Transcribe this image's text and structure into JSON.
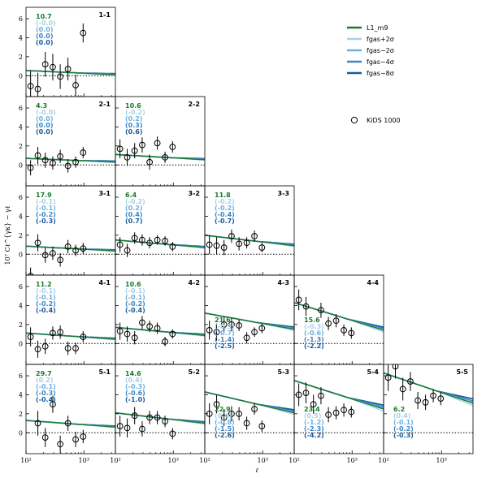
{
  "chart_data": {
    "type": "line",
    "xlabel": "ℓ",
    "ylabel": "10⁷ Cℓ^{γκ} − γℓ",
    "x_scale": "log",
    "xlim": [
      100,
      3500
    ],
    "ylim": [
      -2.2,
      7.2
    ],
    "x_ticks": [
      {
        "value": 100,
        "label": "10²"
      },
      {
        "value": 1000,
        "label": "10³"
      }
    ],
    "y_ticks": [
      {
        "value": 0,
        "label": "0"
      },
      {
        "value": 2,
        "label": "2"
      },
      {
        "value": 4,
        "label": "4"
      },
      {
        "value": 6,
        "label": "6"
      }
    ],
    "legend": {
      "position": "top-right",
      "entries": [
        {
          "label": "L1_m9",
          "color": "#1a7a2e",
          "kind": "line"
        },
        {
          "label": "fgas+2σ",
          "color": "#a8d0ea",
          "kind": "line"
        },
        {
          "label": "fgas−2σ",
          "color": "#6fb0dc",
          "kind": "line"
        },
        {
          "label": "fgas−4σ",
          "color": "#3a86c6",
          "kind": "line"
        },
        {
          "label": "fgas−8σ",
          "color": "#175c9e",
          "kind": "line"
        },
        {
          "label": "KiDS 1000",
          "kind": "marker"
        }
      ]
    },
    "series_colors": [
      "#1a7a2e",
      "#a8d0ea",
      "#6fb0dc",
      "#3a86c6",
      "#175c9e"
    ],
    "data_ell": [
      120,
      160,
      215,
      290,
      390,
      530,
      720,
      970,
      1310
    ],
    "panels": [
      {
        "label": "1-1",
        "row": 0,
        "col": 0,
        "stat_pos": "top",
        "stats": [
          "10.7",
          "(-0.0)",
          "(0.0)",
          "(0.0)",
          "(0.0)"
        ],
        "model_start": 0.55,
        "model_end": 0.1,
        "points": [
          -1.1,
          -1.4,
          1.2,
          0.9,
          -0.1,
          0.7,
          -1.0,
          4.5,
          null
        ],
        "errors": [
          1.6,
          1.7,
          1.3,
          1.4,
          1.3,
          1.2,
          1.1,
          1.0,
          null
        ]
      },
      {
        "label": "2-1",
        "row": 1,
        "col": 0,
        "stat_pos": "top",
        "stats": [
          "4.3",
          "(-0.0)",
          "(0.0)",
          "(0.0)",
          "(0.0)"
        ],
        "model_start": 0.7,
        "model_end": 0.3,
        "points": [
          -0.3,
          1.0,
          0.5,
          0.2,
          0.9,
          -0.1,
          0.3,
          1.3,
          null
        ],
        "errors": [
          0.8,
          0.9,
          0.8,
          0.7,
          0.7,
          0.7,
          0.6,
          0.6,
          null
        ]
      },
      {
        "label": "2-2",
        "row": 1,
        "col": 1,
        "stat_pos": "top",
        "stats": [
          "10.6",
          "(-0.2)",
          "(0.2)",
          "(0.3)",
          "(0.6)"
        ],
        "model_start": 1.1,
        "model_end": 0.55,
        "points": [
          1.7,
          0.8,
          1.5,
          2.1,
          0.3,
          2.3,
          0.8,
          1.9,
          null
        ],
        "errors": [
          1.0,
          0.9,
          0.8,
          0.8,
          0.8,
          0.7,
          0.6,
          0.6,
          null
        ]
      },
      {
        "label": "3-1",
        "row": 2,
        "col": 0,
        "stat_pos": "top",
        "stats": [
          "17.9",
          "(-0.1)",
          "(-0.1)",
          "(-0.2)",
          "(-0.3)"
        ],
        "model_start": 0.85,
        "model_end": 0.35,
        "points": [
          -2.3,
          1.2,
          -0.1,
          0.1,
          -0.6,
          0.8,
          0.4,
          0.6,
          null
        ],
        "errors": [
          0.9,
          0.9,
          0.8,
          0.7,
          0.7,
          0.7,
          0.6,
          0.6,
          null
        ]
      },
      {
        "label": "3-2",
        "row": 2,
        "col": 1,
        "stat_pos": "top",
        "stats": [
          "6.4",
          "(-0.2)",
          "(0.2)",
          "(0.4)",
          "(0.7)"
        ],
        "model_start": 1.5,
        "model_end": 0.7,
        "points": [
          1.0,
          0.4,
          1.7,
          1.5,
          1.2,
          1.5,
          1.4,
          0.8,
          null
        ],
        "errors": [
          0.8,
          0.7,
          0.6,
          0.6,
          0.6,
          0.5,
          0.5,
          0.5,
          null
        ]
      },
      {
        "label": "3-3",
        "row": 2,
        "col": 2,
        "stat_pos": "top",
        "stats": [
          "11.8",
          "(-0.2)",
          "(-0.2)",
          "(-0.4)",
          "(-0.7)"
        ],
        "model_start": 2.0,
        "model_end": 0.9,
        "points": [
          1.0,
          0.9,
          0.7,
          1.9,
          1.1,
          1.2,
          1.9,
          0.7,
          null
        ],
        "errors": [
          1.0,
          0.9,
          0.8,
          0.7,
          0.7,
          0.6,
          0.6,
          0.5,
          null
        ]
      },
      {
        "label": "4-1",
        "row": 3,
        "col": 0,
        "stat_pos": "top",
        "stats": [
          "11.2",
          "(-0.1)",
          "(-0.1)",
          "(-0.2)",
          "(-0.4)"
        ],
        "model_start": 1.1,
        "model_end": 0.45,
        "points": [
          0.7,
          -0.6,
          -0.3,
          1.1,
          1.2,
          -0.5,
          -0.5,
          0.7,
          null
        ],
        "errors": [
          1.0,
          0.9,
          0.8,
          0.7,
          0.7,
          0.7,
          0.6,
          0.6,
          null
        ]
      },
      {
        "label": "4-2",
        "row": 3,
        "col": 1,
        "stat_pos": "top",
        "stats": [
          "10.6",
          "(-0.1)",
          "(-0.1)",
          "(-0.2)",
          "(-0.4)"
        ],
        "model_start": 1.7,
        "model_end": 0.85,
        "points": [
          1.3,
          1.0,
          0.6,
          2.2,
          1.8,
          1.6,
          0.2,
          1.0,
          null
        ],
        "errors": [
          0.9,
          0.8,
          0.7,
          0.7,
          0.6,
          0.6,
          0.5,
          0.5,
          null
        ]
      },
      {
        "label": "4-3",
        "row": 3,
        "col": 2,
        "stat_pos": "bottom",
        "stats": [
          "21.6",
          "(-0.3)",
          "(-0.7)",
          "(-1.4)",
          "(-2.5)"
        ],
        "model_start": 3.2,
        "model_end": 1.5,
        "points": [
          1.4,
          1.2,
          2.0,
          2.0,
          1.9,
          0.6,
          1.2,
          1.6,
          null
        ],
        "errors": [
          1.0,
          0.9,
          0.8,
          0.7,
          0.6,
          0.6,
          0.5,
          0.5,
          null
        ]
      },
      {
        "label": "4-4",
        "row": 3,
        "col": 3,
        "stat_pos": "bottom",
        "stats": [
          "15.6",
          "(-0.3)",
          "(-0.6)",
          "(-1.3)",
          "(-2.2)"
        ],
        "model_start": 4.3,
        "model_end": 1.4,
        "points": [
          4.6,
          3.9,
          null,
          3.5,
          2.1,
          2.4,
          1.4,
          1.1,
          null
        ],
        "errors": [
          1.1,
          1.0,
          null,
          0.8,
          0.7,
          0.7,
          0.6,
          0.6,
          null
        ]
      },
      {
        "label": "5-1",
        "row": 4,
        "col": 0,
        "stat_pos": "top",
        "stats": [
          "29.7",
          "(0.2)",
          "(-0.1)",
          "(-0.3)",
          "(-0.4)"
        ],
        "model_start": 1.3,
        "model_end": 0.6,
        "points": [
          null,
          1.0,
          -0.5,
          3.0,
          -1.2,
          1.0,
          -0.7,
          -0.4,
          null
        ],
        "errors": [
          null,
          1.3,
          1.0,
          0.9,
          0.9,
          0.8,
          0.8,
          0.7,
          null
        ]
      },
      {
        "label": "5-2",
        "row": 4,
        "col": 1,
        "stat_pos": "top",
        "stats": [
          "14.6",
          "(0.4)",
          "(-0.3)",
          "(-0.6)",
          "(-1.0)"
        ],
        "model_start": 2.1,
        "model_end": 1.0,
        "points": [
          0.7,
          0.5,
          1.8,
          0.4,
          1.6,
          1.6,
          1.2,
          -0.1,
          null
        ],
        "errors": [
          1.1,
          1.0,
          0.9,
          0.8,
          0.7,
          0.7,
          0.6,
          0.6,
          null
        ]
      },
      {
        "label": "5-3",
        "row": 4,
        "col": 2,
        "stat_pos": "bottom",
        "stats": [
          "22.9",
          "(0.4)",
          "(-0.8)",
          "(-1.5)",
          "(-2.6)"
        ],
        "model_start": 4.3,
        "model_end": 2.1,
        "points": [
          2.0,
          3.0,
          1.6,
          2.0,
          2.0,
          1.0,
          2.5,
          0.7,
          null
        ],
        "errors": [
          1.1,
          1.0,
          0.9,
          0.8,
          0.7,
          0.7,
          0.6,
          0.6,
          null
        ]
      },
      {
        "label": "5-4",
        "row": 4,
        "col": 3,
        "stat_pos": "bottom",
        "stats": [
          "23.4",
          "(0.5)",
          "(-1.2)",
          "(-2.3)",
          "(-4.2)"
        ],
        "model_start": 5.5,
        "model_end": 2.5,
        "points": [
          4.0,
          4.2,
          3.0,
          3.9,
          1.9,
          2.1,
          2.4,
          2.2,
          null
        ],
        "errors": [
          1.2,
          1.1,
          1.0,
          0.9,
          0.8,
          0.7,
          0.7,
          0.6,
          null
        ]
      },
      {
        "label": "5-5",
        "row": 4,
        "col": 4,
        "stat_pos": "bottom",
        "stats": [
          "6.2",
          "(0.4)",
          "(-0.1)",
          "(-0.2)",
          "(-0.3)"
        ],
        "model_start": 6.3,
        "model_end": 3.1,
        "points": [
          5.8,
          7.0,
          4.6,
          5.4,
          3.4,
          3.2,
          3.9,
          3.6,
          null
        ],
        "errors": [
          1.4,
          1.3,
          1.2,
          1.0,
          0.9,
          0.8,
          0.7,
          0.7,
          null
        ]
      }
    ]
  }
}
